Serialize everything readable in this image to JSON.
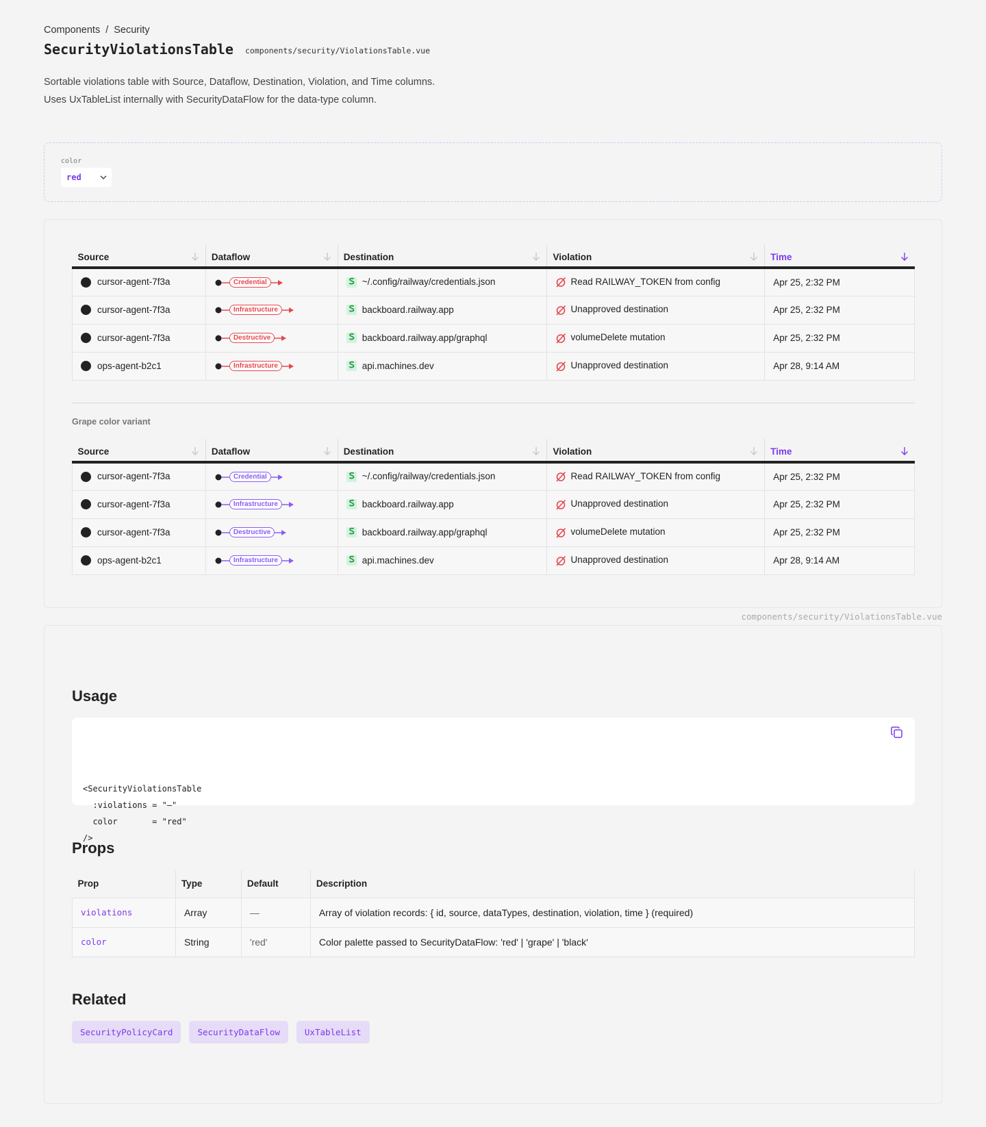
{
  "breadcrumb": {
    "items": [
      "Components",
      "Security"
    ],
    "separator": "/"
  },
  "header": {
    "title": "SecurityViolationsTable",
    "path": "components/security/ViolationsTable.vue",
    "description": [
      "Sortable violations table with Source, Dataflow, Destination, Violation, and Time columns.",
      "Uses UxTableList internally with SecurityDataFlow for the data-type column."
    ]
  },
  "controls": {
    "label": "color",
    "value": "red"
  },
  "tables": [
    {
      "color": "#e5484d",
      "columns": [
        "Source",
        "Dataflow",
        "Destination",
        "Violation",
        "Time"
      ],
      "rows": [
        [
          "cursor-agent-7f3a",
          "Credential",
          "~/.config/railway/credentials.json",
          "Read RAILWAY_TOKEN from config",
          "Apr 25, 2:32 PM"
        ],
        [
          "cursor-agent-7f3a",
          "Infrastructure",
          "backboard.railway.app",
          "Unapproved destination",
          "Apr 25, 2:32 PM"
        ],
        [
          "cursor-agent-7f3a",
          "Destructive",
          "backboard.railway.app/graphql",
          "volumeDelete mutation",
          "Apr 25, 2:32 PM"
        ],
        [
          "ops-agent-b2c1",
          "Infrastructure",
          "api.machines.dev",
          "Unapproved destination",
          "Apr 28, 9:14 AM"
        ]
      ]
    },
    {
      "caption": "Grape color variant",
      "color": "#8b5cf6",
      "columns": [
        "Source",
        "Dataflow",
        "Destination",
        "Violation",
        "Time"
      ],
      "rows": [
        [
          "cursor-agent-7f3a",
          "Credential",
          "~/.config/railway/credentials.json",
          "Read RAILWAY_TOKEN from config",
          "Apr 25, 2:32 PM"
        ],
        [
          "cursor-agent-7f3a",
          "Infrastructure",
          "backboard.railway.app",
          "Unapproved destination",
          "Apr 25, 2:32 PM"
        ],
        [
          "cursor-agent-7f3a",
          "Destructive",
          "backboard.railway.app/graphql",
          "volumeDelete mutation",
          "Apr 25, 2:32 PM"
        ],
        [
          "ops-agent-b2c1",
          "Infrastructure",
          "api.machines.dev",
          "Unapproved destination",
          "Apr 28, 9:14 AM"
        ]
      ]
    }
  ],
  "source_path": "components/security/ViolationsTable.vue",
  "usage": {
    "title": "Usage",
    "code": [
      "<SecurityViolationsTable",
      "  :violations = \"—\"",
      "  color       = \"red\"",
      "/>"
    ]
  },
  "props": {
    "title": "Props",
    "columns": [
      "Prop",
      "Type",
      "Default",
      "Description"
    ],
    "rows": [
      [
        "violations",
        "Array",
        "—",
        "Array of violation records: { id, source, dataTypes, destination, violation, time } (required)"
      ],
      [
        "color",
        "String",
        "'red'",
        "Color palette passed to SecurityDataFlow: 'red' | 'grape' | 'black'"
      ]
    ]
  },
  "related": {
    "title": "Related",
    "items": [
      "SecurityPolicyCard",
      "SecurityDataFlow",
      "UxTableList"
    ]
  }
}
